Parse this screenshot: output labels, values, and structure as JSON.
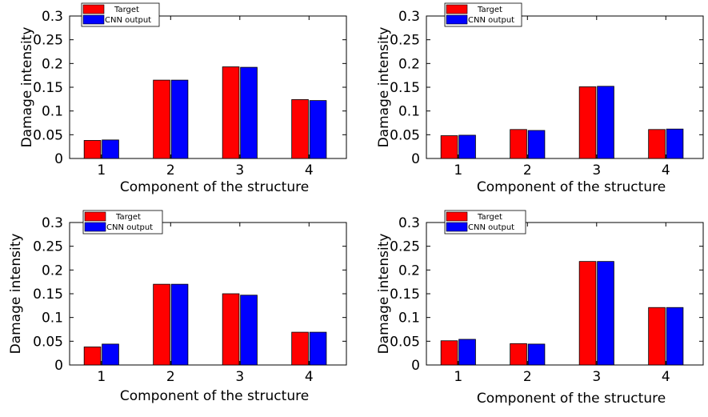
{
  "colors": {
    "target": "#ff0000",
    "cnn": "#0000ff"
  },
  "chart_data": [
    {
      "type": "bar",
      "categories": [
        "1",
        "2",
        "3",
        "4"
      ],
      "series": [
        {
          "name": "Target",
          "values": [
            0.038,
            0.165,
            0.193,
            0.124
          ]
        },
        {
          "name": "CNN output",
          "values": [
            0.039,
            0.165,
            0.192,
            0.122
          ]
        }
      ],
      "xlabel": "Component of the structure",
      "ylabel": "Damage intensity",
      "ylim": [
        0,
        0.3
      ],
      "yticks": [
        "0",
        "0.05",
        "0.1",
        "0.15",
        "0.2",
        "0.25",
        "0.3"
      ],
      "legend": "top-left"
    },
    {
      "type": "bar",
      "categories": [
        "1",
        "2",
        "3",
        "4"
      ],
      "series": [
        {
          "name": "Target",
          "values": [
            0.048,
            0.061,
            0.151,
            0.061
          ]
        },
        {
          "name": "CNN output",
          "values": [
            0.049,
            0.059,
            0.152,
            0.062
          ]
        }
      ],
      "xlabel": "Component of the structure",
      "ylabel": "Damage intensity",
      "ylim": [
        0,
        0.3
      ],
      "yticks": [
        "0",
        "0.05",
        "0.1",
        "0.15",
        "0.2",
        "0.25",
        "0.3"
      ],
      "legend": "top-left"
    },
    {
      "type": "bar",
      "categories": [
        "1",
        "2",
        "3",
        "4"
      ],
      "series": [
        {
          "name": "Target",
          "values": [
            0.038,
            0.17,
            0.15,
            0.069
          ]
        },
        {
          "name": "CNN output",
          "values": [
            0.044,
            0.17,
            0.147,
            0.069
          ]
        }
      ],
      "xlabel": "Component of the structure",
      "ylabel": "Damage intensity",
      "ylim": [
        0,
        0.3
      ],
      "yticks": [
        "0",
        "0.05",
        "0.1",
        "0.15",
        "0.2",
        "0.25",
        "0.3"
      ],
      "legend": "top-left"
    },
    {
      "type": "bar",
      "categories": [
        "1",
        "2",
        "3",
        "4"
      ],
      "series": [
        {
          "name": "Target",
          "values": [
            0.051,
            0.045,
            0.218,
            0.121
          ]
        },
        {
          "name": "CNN output",
          "values": [
            0.054,
            0.044,
            0.218,
            0.121
          ]
        }
      ],
      "xlabel": "Component of the structure",
      "ylabel": "Damage intensity",
      "ylim": [
        0,
        0.3
      ],
      "yticks": [
        "0",
        "0.05",
        "0.1",
        "0.15",
        "0.2",
        "0.25",
        "0.3"
      ],
      "legend": "top-left"
    }
  ]
}
